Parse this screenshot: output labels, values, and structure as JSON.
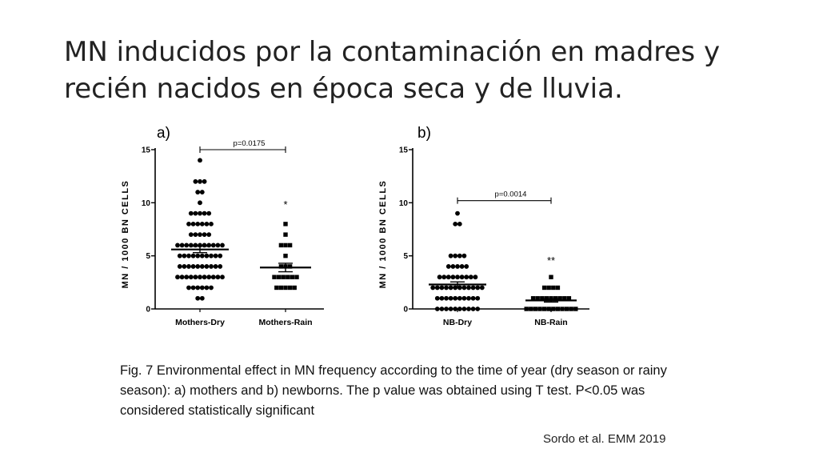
{
  "slide": {
    "title_line1": "MN  inducidos por la contaminación en madres y",
    "title_line2": "recién nacidos en época seca y de lluvia.",
    "caption_line1": "Fig. 7  Environmental  effect in MN frequency according to the time of year (dry season or rainy",
    "caption_line2": "season): a) mothers and b) newborns.   The p value was obtained using T test.  P<0.05 was",
    "caption_line3": "considered statistically  significant",
    "source": "Sordo et al. EMM 2019"
  },
  "chart_data": [
    {
      "type": "scatter",
      "panel_label": "a)",
      "ylabel": "MN / 1000 BN CELLS",
      "ylim": [
        0,
        15
      ],
      "yticks": [
        0,
        5,
        10,
        15
      ],
      "categories": [
        "Mothers-Dry",
        "Mothers-Rain"
      ],
      "groups": [
        {
          "category": "Mothers-Dry",
          "mean": 5.6,
          "sem": 0.3,
          "values": [
            1,
            1,
            2,
            2,
            2,
            2,
            2,
            2,
            3,
            3,
            3,
            3,
            3,
            3,
            3,
            3,
            3,
            3,
            3,
            4,
            4,
            4,
            4,
            4,
            4,
            4,
            4,
            4,
            4,
            5,
            5,
            5,
            5,
            5,
            5,
            5,
            5,
            5,
            5,
            6,
            6,
            6,
            6,
            6,
            6,
            6,
            6,
            6,
            6,
            6,
            7,
            7,
            7,
            7,
            7,
            8,
            8,
            8,
            8,
            8,
            8,
            9,
            9,
            9,
            9,
            9,
            10,
            11,
            11,
            12,
            12,
            12,
            14
          ]
        },
        {
          "category": "Mothers-Rain",
          "mean": 3.9,
          "sem": 0.4,
          "values": [
            2,
            2,
            2,
            2,
            2,
            3,
            3,
            3,
            3,
            3,
            3,
            4,
            4,
            4,
            5,
            6,
            6,
            6,
            7,
            8
          ]
        }
      ],
      "comparison": {
        "text": "p=0.0175",
        "from": "Mothers-Dry",
        "to": "Mothers-Rain",
        "y": 15
      },
      "significance": "*"
    },
    {
      "type": "scatter",
      "panel_label": "b)",
      "ylabel": "MN / 1000 BN CELLS",
      "ylim": [
        0,
        15
      ],
      "yticks": [
        0,
        5,
        10,
        15
      ],
      "categories": [
        "NB-Dry",
        "NB-Rain"
      ],
      "groups": [
        {
          "category": "NB-Dry",
          "mean": 2.3,
          "sem": 0.25,
          "values": [
            0,
            0,
            0,
            0,
            0,
            0,
            0,
            0,
            0,
            0,
            1,
            1,
            1,
            1,
            1,
            1,
            1,
            1,
            1,
            1,
            2,
            2,
            2,
            2,
            2,
            2,
            2,
            2,
            2,
            2,
            2,
            2,
            3,
            3,
            3,
            3,
            3,
            3,
            3,
            3,
            3,
            4,
            4,
            4,
            4,
            4,
            5,
            5,
            5,
            5,
            8,
            8,
            9
          ]
        },
        {
          "category": "NB-Rain",
          "mean": 0.8,
          "sem": 0.15,
          "values": [
            0,
            0,
            0,
            0,
            0,
            0,
            0,
            0,
            0,
            0,
            0,
            0,
            1,
            1,
            1,
            1,
            1,
            1,
            1,
            1,
            1,
            2,
            2,
            2,
            2,
            3
          ]
        }
      ],
      "comparison": {
        "text": "p=0.0014",
        "from": "NB-Dry",
        "to": "NB-Rain",
        "y": 10.2
      },
      "significance": "**"
    }
  ]
}
